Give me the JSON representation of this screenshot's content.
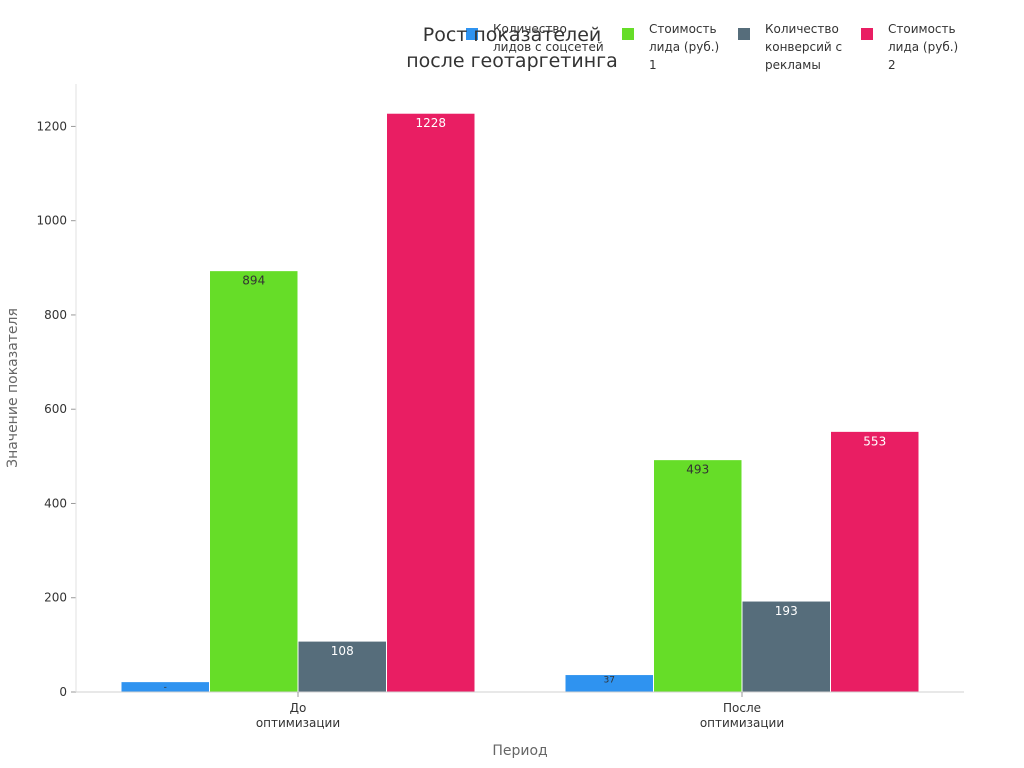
{
  "chart_data": {
    "type": "bar",
    "title_lines": [
      "Рост показателей",
      "после геотаргетинга"
    ],
    "xlabel": "Период",
    "ylabel": "Значение показателя",
    "categories": [
      [
        "До",
        "оптимизации"
      ],
      [
        "После",
        "оптимизации"
      ]
    ],
    "ylim": [
      0,
      1290
    ],
    "yticks": [
      0,
      200,
      400,
      600,
      800,
      1000,
      1200
    ],
    "series": [
      {
        "name_lines": [
          "Количество",
          "лидов с соцсетей"
        ],
        "color": "#2f93f0",
        "values": [
          22,
          37
        ],
        "value_labels": [
          "-",
          "37"
        ],
        "label_color": "#333333",
        "label_size": 9
      },
      {
        "name_lines": [
          "Стоимость",
          "лида (руб.)",
          "1"
        ],
        "color": "#66dd28",
        "values": [
          894,
          493
        ],
        "value_labels": [
          "894",
          "493"
        ],
        "label_color": "#333333",
        "label_size": 12
      },
      {
        "name_lines": [
          "Количество",
          "конверсий с",
          "рекламы"
        ],
        "color": "#566d7b",
        "values": [
          108,
          193
        ],
        "value_labels": [
          "108",
          "193"
        ],
        "label_color": "#ffffff",
        "label_size": 12
      },
      {
        "name_lines": [
          "Стоимость",
          "лида (руб.)",
          "2"
        ],
        "color": "#e91e63",
        "values": [
          1228,
          553
        ],
        "value_labels": [
          "1228",
          "553"
        ],
        "label_color": "#ffffff",
        "label_size": 12
      }
    ],
    "legend_position": "top-right",
    "grid": false
  }
}
